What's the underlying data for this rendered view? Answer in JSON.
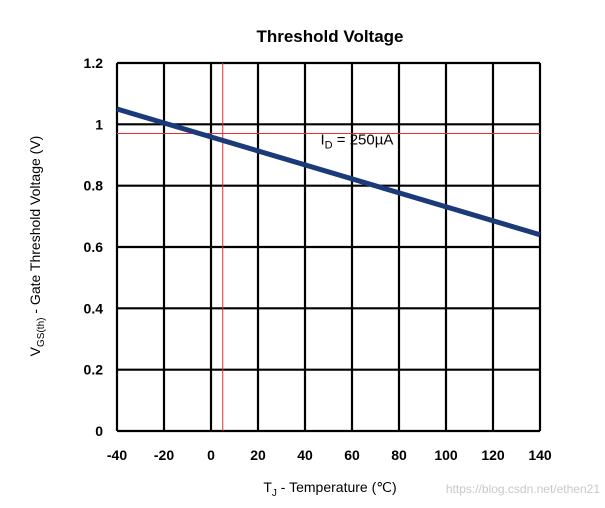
{
  "chart_data": {
    "type": "line",
    "title": "Threshold Voltage",
    "xlabel": {
      "prefix": "T",
      "sub": "J",
      "suffix": " - Temperature (℃)"
    },
    "ylabel": {
      "prefix": "V",
      "sub": "GS(th)",
      "suffix": " - Gate Threshold Voltage (V)"
    },
    "xlim": [
      -40,
      140
    ],
    "ylim": [
      0,
      1.2
    ],
    "x_ticks": [
      -40,
      -20,
      0,
      20,
      40,
      60,
      80,
      100,
      120,
      140
    ],
    "y_ticks": [
      0,
      0.2,
      0.4,
      0.6,
      0.8,
      1,
      1.2
    ],
    "x_tick_labels": [
      "-40",
      "-20",
      "0",
      "20",
      "40",
      "60",
      "80",
      "100",
      "120",
      "140"
    ],
    "y_tick_labels": [
      "0",
      "0.2",
      "0.4",
      "0.6",
      "0.8",
      "1",
      "1.2"
    ],
    "grid": true,
    "series": [
      {
        "x": [
          -40,
          140
        ],
        "y": [
          1.05,
          0.64
        ],
        "color": "#1b3a7a"
      }
    ],
    "reference_lines": {
      "vertical_x": 5,
      "horizontal_y": 0.97,
      "color": "#e03030"
    },
    "annotation": {
      "prefix": "I",
      "sub": "D",
      "suffix": " = 250µA",
      "x": 50,
      "y": 0.95
    }
  },
  "watermark": "https://blog.csdn.net/ethen21"
}
